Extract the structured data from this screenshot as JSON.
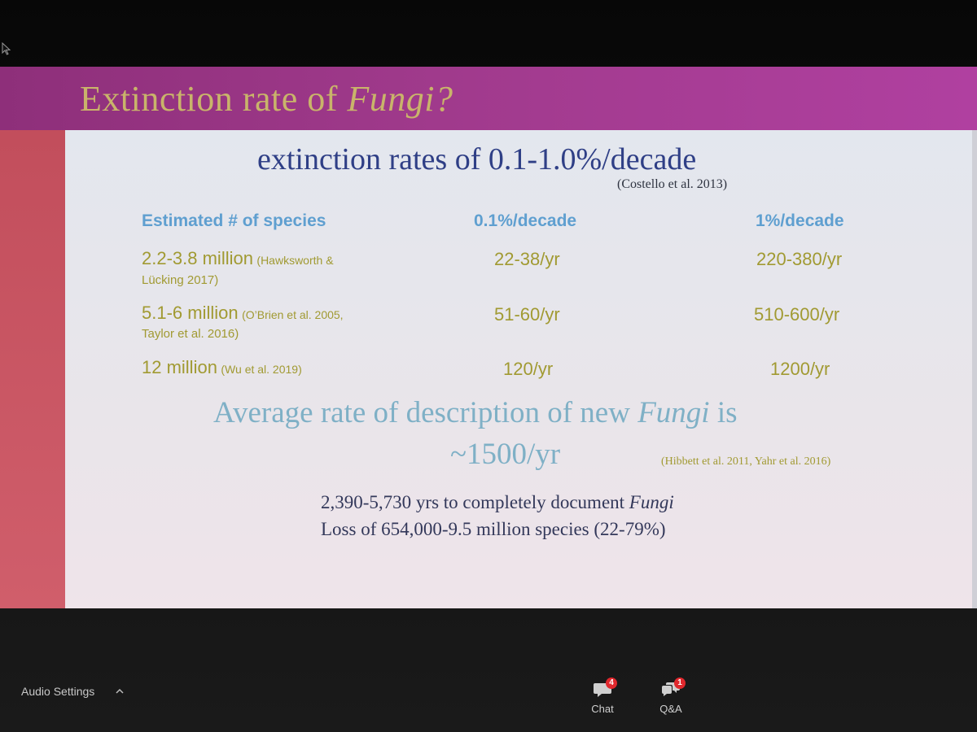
{
  "slide": {
    "title_main": "Extinction rate of ",
    "title_italic": "Fungi?",
    "subtitle": "extinction rates of 0.1-1.0%/decade",
    "subtitle_citation": "(Costello et al. 2013)",
    "table": {
      "headers": [
        "Estimated # of species",
        "0.1%/decade",
        "1%/decade"
      ],
      "rows": [
        {
          "species": "2.2-3.8 million",
          "citation": "(Hawksworth &",
          "citation_cont": "Lücking 2017)",
          "rate_low": "22-38/yr",
          "rate_high": "220-380/yr"
        },
        {
          "species": "5.1-6 million",
          "citation": "(O’Brien et al. 2005,",
          "citation_cont": "Taylor et al. 2016)",
          "rate_low": "51-60/yr",
          "rate_high": "510-600/yr"
        },
        {
          "species": "12 million",
          "citation": "(Wu et al. 2019)",
          "citation_cont": "",
          "rate_low": "120/yr",
          "rate_high": "1200/yr"
        }
      ]
    },
    "average_line1_pre": "Average rate of description of new ",
    "average_line1_italic": "Fungi",
    "average_line1_post": " is",
    "average_line2": "~1500/yr",
    "average_citation": "(Hibbett et al. 2011, Yahr et al. 2016)",
    "conclusion1_pre": "2,390-5,730 yrs to completely document ",
    "conclusion1_italic": "Fungi",
    "conclusion2": "Loss of 654,000-9.5 million species (22-79%)"
  },
  "toolbar": {
    "audio_settings_label": "Audio Settings",
    "chat_label": "Chat",
    "chat_badge": "4",
    "qa_label": "Q&A",
    "qa_badge": "1"
  },
  "icons": {
    "cursor": "cursor-icon",
    "chevron": "chevron-up-icon",
    "chat": "chat-bubble-icon",
    "qa": "qa-bubbles-icon"
  },
  "colors": {
    "header": "#a03a8c",
    "title": "#c9b46a",
    "left_bar": "#c24e5c",
    "slide_bg": "#e6e7ec",
    "subtitle": "#2f3f86",
    "table_header": "#5f9fd0",
    "table_value": "#a19a32",
    "average_text": "#7fb0c6",
    "conclusion": "#33385a",
    "badge": "#e0282d"
  }
}
